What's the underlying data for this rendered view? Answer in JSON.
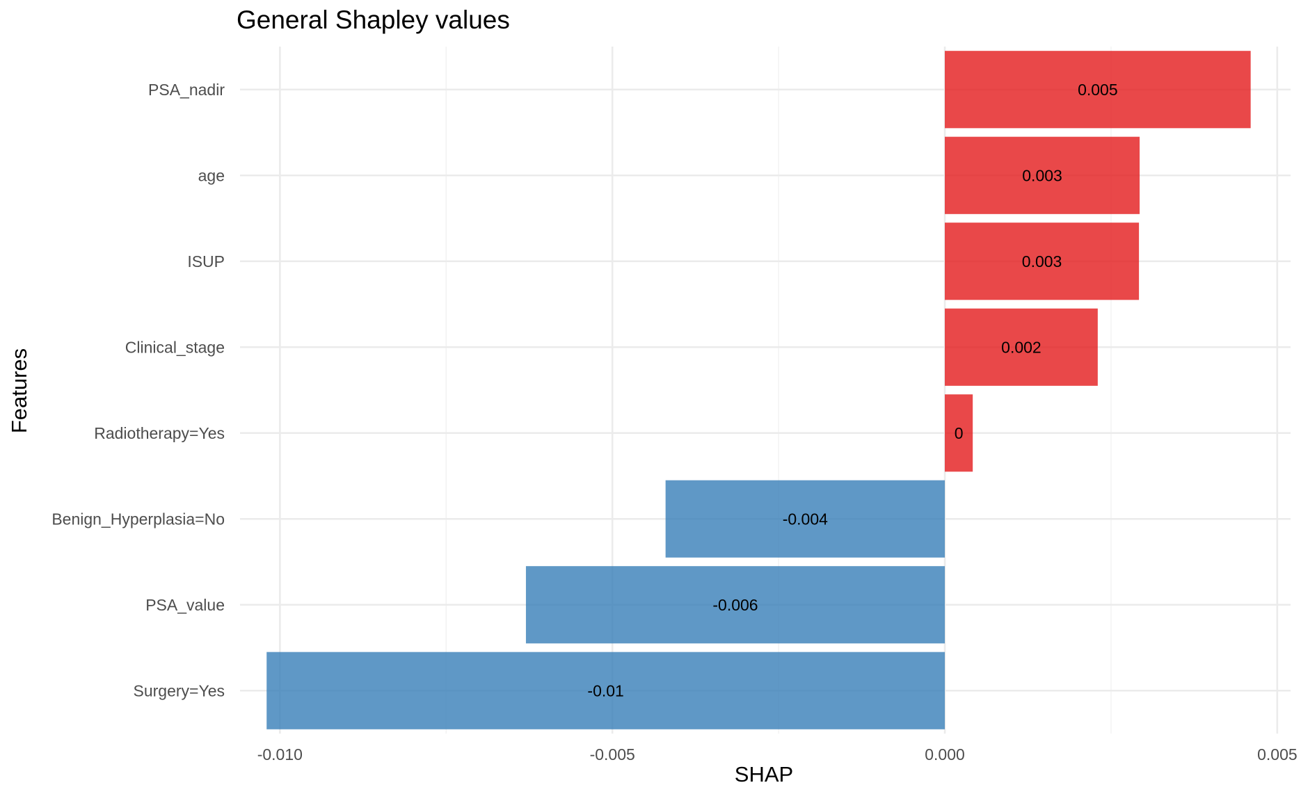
{
  "chart_data": {
    "type": "bar",
    "orientation": "horizontal",
    "title": "General Shapley values",
    "xlabel": "SHAP",
    "ylabel": "Features",
    "xlim": [
      -0.0106,
      0.0052
    ],
    "x_ticks": [
      -0.01,
      -0.005,
      0.0,
      0.005
    ],
    "x_tick_labels": [
      "-0.010",
      "-0.005",
      "0.000",
      "0.005"
    ],
    "grid": true,
    "legend": "none",
    "categories": [
      "PSA_nadir",
      "age",
      "ISUP",
      "Clinical_stage ",
      "Radiotherapy=Yes",
      "Benign_Hyperplasia=No",
      "PSA_value",
      "Surgery=Yes"
    ],
    "values": [
      0.0046,
      0.00293,
      0.00292,
      0.0023,
      0.00042,
      -0.0042,
      -0.0063,
      -0.0102
    ],
    "value_labels": [
      "0.005",
      "0.003",
      "0.003",
      "0.002",
      "0",
      "-0.004",
      "-0.006",
      "-0.01"
    ],
    "colors": {
      "positive": "#e41a1c",
      "negative": "#377eb8"
    },
    "bar_opacity": 0.8
  }
}
